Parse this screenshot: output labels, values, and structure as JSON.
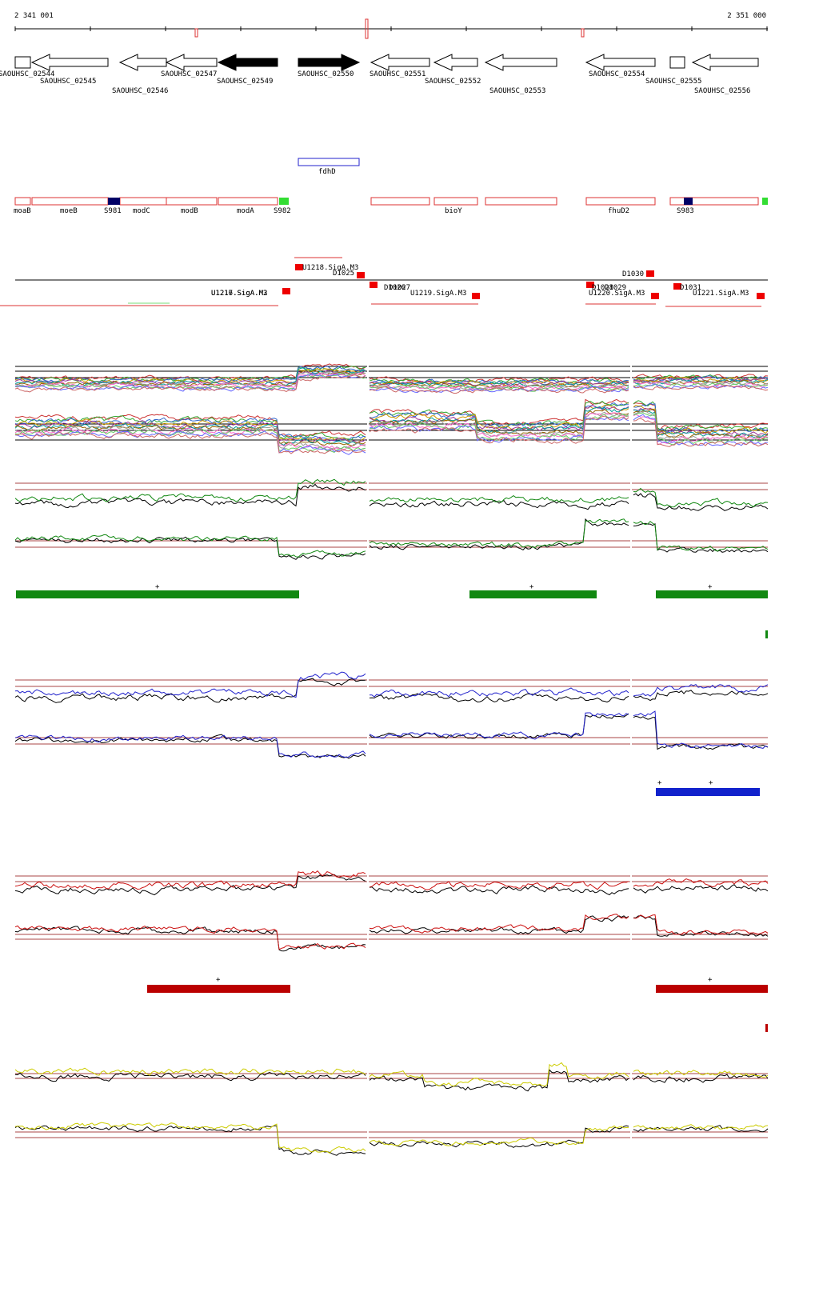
{
  "header": {
    "start": "2 341 001",
    "end": "2 351 000"
  },
  "genes": [
    {
      "label": "SAOUHSC_02544"
    },
    {
      "label": "SAOUHSC_02545"
    },
    {
      "label": "SAOUHSC_02546"
    },
    {
      "label": "SAOUHSC_02547"
    },
    {
      "label": "SAOUHSC_02549"
    },
    {
      "label": "SAOUHSC_02550"
    },
    {
      "label": "SAOUHSC_02551"
    },
    {
      "label": "SAOUHSC_02552"
    },
    {
      "label": "SAOUHSC_02553"
    },
    {
      "label": "SAOUHSC_02554"
    },
    {
      "label": "SAOUHSC_02555"
    },
    {
      "label": "SAOUHSC_02556"
    }
  ],
  "features": [
    {
      "label": "fdhD"
    }
  ],
  "operons": [
    {
      "label": "moaB"
    },
    {
      "label": "moeB"
    },
    {
      "label": "S981"
    },
    {
      "label": "modC"
    },
    {
      "label": "modB"
    },
    {
      "label": "modA"
    },
    {
      "label": "S982"
    },
    {
      "label": "bioY"
    },
    {
      "label": "fhuD2"
    },
    {
      "label": "S983"
    }
  ],
  "promoters": [
    {
      "label": "U1218.SigA.M3"
    },
    {
      "label": "D1025"
    },
    {
      "label": "U1216.SigA.M2"
    },
    {
      "label": "U1217.SigA.M3"
    },
    {
      "label": "D1026"
    },
    {
      "label": "D1027"
    },
    {
      "label": "U1219.SigA.M3"
    },
    {
      "label": "D1028"
    },
    {
      "label": "D1029"
    },
    {
      "label": "U1220.SigA.M3"
    },
    {
      "label": "D1030"
    },
    {
      "label": "D1031"
    },
    {
      "label": "U1221.SigA.M3"
    }
  ],
  "plus_marks": [
    {
      "label": "+"
    },
    {
      "label": "+"
    },
    {
      "label": "+"
    },
    {
      "label": "+"
    },
    {
      "label": "+"
    },
    {
      "label": "+"
    },
    {
      "label": "+"
    }
  ]
}
